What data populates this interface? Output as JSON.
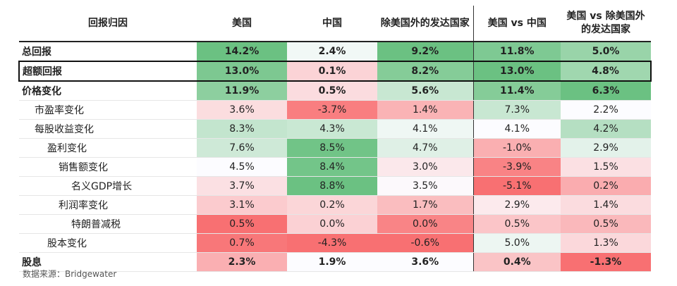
{
  "chart_data": {
    "type": "table",
    "columns": [
      "回报归因",
      "美国",
      "中国",
      "除美国外的发达国家",
      "美国 vs 中国",
      "美国 vs 除美国外的发达国家"
    ],
    "rows": [
      {
        "label": "总回报",
        "level": 0,
        "bold": true,
        "boxed": false,
        "values": [
          "14.2%",
          "2.4%",
          "9.2%",
          "11.8%",
          "5.0%"
        ]
      },
      {
        "label": "超额回报",
        "level": 0,
        "bold": true,
        "boxed": true,
        "values": [
          "13.0%",
          "0.1%",
          "8.2%",
          "13.0%",
          "4.8%"
        ]
      },
      {
        "label": "价格变化",
        "level": 0,
        "bold": true,
        "boxed": false,
        "values": [
          "11.9%",
          "0.5%",
          "5.6%",
          "11.4%",
          "6.3%"
        ]
      },
      {
        "label": "市盈率变化",
        "level": 1,
        "bold": false,
        "boxed": false,
        "values": [
          "3.6%",
          "-3.7%",
          "1.4%",
          "7.3%",
          "2.2%"
        ]
      },
      {
        "label": "每股收益变化",
        "level": 1,
        "bold": false,
        "boxed": false,
        "values": [
          "8.3%",
          "4.3%",
          "4.1%",
          "4.1%",
          "4.2%"
        ]
      },
      {
        "label": "盈利变化",
        "level": 2,
        "bold": false,
        "boxed": false,
        "values": [
          "7.6%",
          "8.5%",
          "4.7%",
          "-1.0%",
          "2.9%"
        ]
      },
      {
        "label": "销售额变化",
        "level": 3,
        "bold": false,
        "boxed": false,
        "values": [
          "4.5%",
          "8.4%",
          "3.0%",
          "-3.9%",
          "1.5%"
        ]
      },
      {
        "label": "名义GDP增长",
        "level": 4,
        "bold": false,
        "boxed": false,
        "values": [
          "3.7%",
          "8.8%",
          "3.5%",
          "-5.1%",
          "0.2%"
        ]
      },
      {
        "label": "利润率变化",
        "level": 3,
        "bold": false,
        "boxed": false,
        "values": [
          "3.1%",
          "0.2%",
          "1.7%",
          "2.9%",
          "1.4%"
        ]
      },
      {
        "label": "特朗普减税",
        "level": 4,
        "bold": false,
        "boxed": false,
        "values": [
          "0.5%",
          "0.0%",
          "0.0%",
          "0.5%",
          "0.5%"
        ]
      },
      {
        "label": "股本变化",
        "level": 2,
        "bold": false,
        "boxed": false,
        "values": [
          "0.7%",
          "-4.3%",
          "-0.6%",
          "5.0%",
          "1.3%"
        ]
      },
      {
        "label": "股息",
        "level": 0,
        "bold": true,
        "boxed": false,
        "values": [
          "2.3%",
          "1.9%",
          "3.6%",
          "0.4%",
          "-1.3%"
        ]
      }
    ],
    "colors": {
      "positive": "#63be7b",
      "negative": "#f8696b",
      "neutral": "#fcfcff"
    }
  },
  "source": "数据来源：Bridgewater"
}
